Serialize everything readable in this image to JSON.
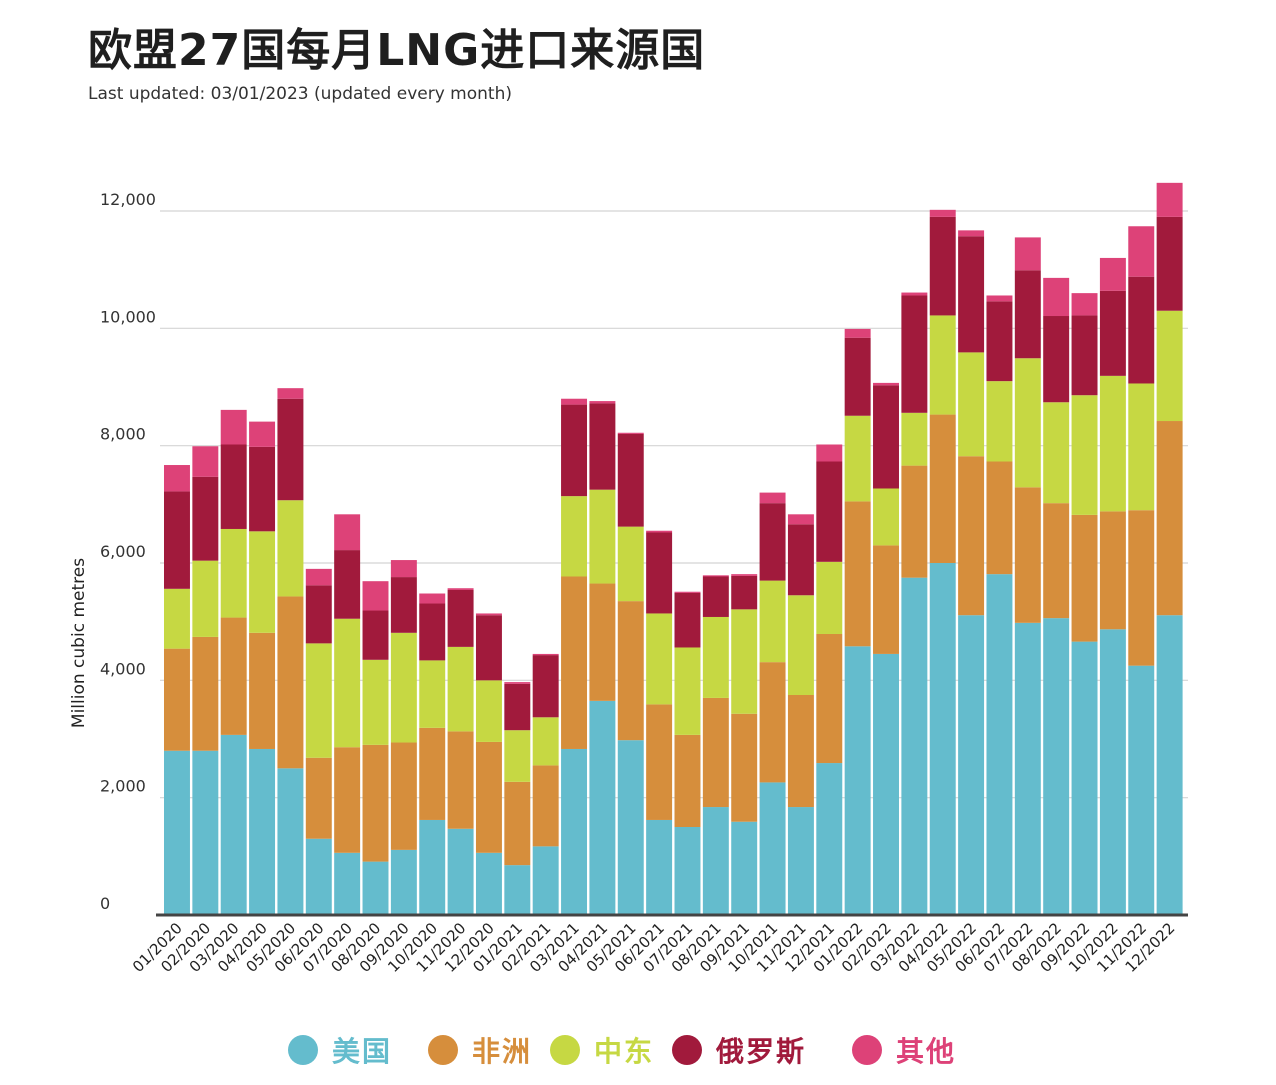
{
  "title": "欧盟27国每月LNG进口来源国",
  "subtitle": "Last updated: 03/01/2023 (updated every month)",
  "colors": {
    "usa": "#64bccd",
    "africa": "#d68e3c",
    "mideast": "#c6d843",
    "russia": "#a11a3c",
    "other": "#dd4278",
    "grid": "#d4d4d4",
    "axis": "#444444"
  },
  "legend": [
    {
      "key": "usa",
      "label": "美国"
    },
    {
      "key": "africa",
      "label": "非洲"
    },
    {
      "key": "mideast",
      "label": "中东"
    },
    {
      "key": "russia",
      "label": "俄罗斯"
    },
    {
      "key": "other",
      "label": "其他"
    }
  ],
  "chart_data": {
    "type": "bar",
    "stacked": true,
    "title": "欧盟27国每月LNG进口来源国",
    "xlabel": "",
    "ylabel": "Million cubic metres",
    "ylim": [
      0,
      12000
    ],
    "yticks": [
      0,
      2000,
      4000,
      6000,
      8000,
      10000,
      12000
    ],
    "ytick_labels": [
      "0",
      "2,000",
      "4,000",
      "6,000",
      "8,000",
      "10,000",
      "12,000"
    ],
    "grid": true,
    "legend_position": "bottom",
    "categories": [
      "01/2020",
      "02/2020",
      "03/2020",
      "04/2020",
      "05/2020",
      "06/2020",
      "07/2020",
      "08/2020",
      "09/2020",
      "10/2020",
      "11/2020",
      "12/2020",
      "01/2021",
      "02/2021",
      "03/2021",
      "04/2021",
      "05/2021",
      "06/2021",
      "07/2021",
      "08/2021",
      "09/2021",
      "10/2021",
      "11/2021",
      "12/2021",
      "01/2022",
      "02/2022",
      "03/2022",
      "04/2022",
      "05/2022",
      "06/2022",
      "07/2022",
      "08/2022",
      "09/2022",
      "10/2022",
      "11/2022",
      "12/2022"
    ],
    "series": [
      {
        "name": "美国",
        "key": "usa",
        "values": [
          2800,
          2800,
          3070,
          2830,
          2500,
          1300,
          1060,
          910,
          1110,
          1620,
          1470,
          1060,
          850,
          1170,
          2830,
          3650,
          2980,
          1620,
          1500,
          1840,
          1590,
          2260,
          1840,
          2590,
          4580,
          4450,
          5750,
          6000,
          5110,
          5810,
          4980,
          5060,
          4660,
          4870,
          4250,
          5110
        ]
      },
      {
        "name": "非洲",
        "key": "africa",
        "values": [
          1740,
          1940,
          2000,
          1980,
          2930,
          1380,
          1800,
          1990,
          1830,
          1570,
          1660,
          1890,
          1420,
          1380,
          2940,
          2000,
          2370,
          1970,
          1570,
          1860,
          1840,
          2050,
          1910,
          2200,
          2470,
          1850,
          1910,
          2530,
          2710,
          1920,
          2310,
          1960,
          2160,
          2010,
          2650,
          3310
        ]
      },
      {
        "name": "中东",
        "key": "mideast",
        "values": [
          1020,
          1300,
          1510,
          1730,
          1640,
          1950,
          2190,
          1450,
          1870,
          1150,
          1440,
          1050,
          880,
          820,
          1370,
          1600,
          1270,
          1550,
          1490,
          1380,
          1780,
          1390,
          1700,
          1230,
          1460,
          970,
          900,
          1690,
          1770,
          1370,
          2200,
          1720,
          2040,
          2310,
          2160,
          1880
        ]
      },
      {
        "name": "俄罗斯",
        "key": "russia",
        "values": [
          1660,
          1430,
          1440,
          1440,
          1730,
          990,
          1170,
          840,
          950,
          970,
          970,
          1110,
          790,
          1060,
          1560,
          1470,
          1580,
          1380,
          930,
          690,
          570,
          1320,
          1210,
          1710,
          1330,
          1760,
          2000,
          1680,
          1980,
          1360,
          1500,
          1470,
          1360,
          1450,
          1820,
          1600
        ]
      },
      {
        "name": "其他",
        "key": "other",
        "values": [
          450,
          520,
          590,
          430,
          180,
          280,
          610,
          500,
          290,
          170,
          30,
          30,
          30,
          20,
          100,
          40,
          20,
          30,
          20,
          20,
          30,
          180,
          170,
          290,
          150,
          40,
          50,
          120,
          100,
          100,
          560,
          650,
          380,
          560,
          860,
          580
        ]
      }
    ]
  }
}
